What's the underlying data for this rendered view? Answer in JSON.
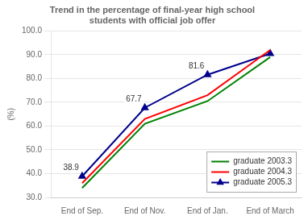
{
  "chart_data": {
    "type": "line",
    "title": "Trend in the percentage of final-year high school\nstudents with official job offer",
    "ylabel": "(%)",
    "categories": [
      "End of Sep.",
      "End of Nov.",
      "End of Jan.",
      "End of March"
    ],
    "series": [
      {
        "name": "graduate 2003.3",
        "color": "#008000",
        "values": [
          34.0,
          61.0,
          70.5,
          89.0
        ]
      },
      {
        "name": "graduate 2004.3",
        "color": "#ff0000",
        "values": [
          36.0,
          63.0,
          73.0,
          92.0
        ]
      },
      {
        "name": "graduate 2005.3",
        "color": "#00008b",
        "marker": "triangle",
        "values": [
          38.9,
          67.7,
          81.6,
          90.5
        ]
      }
    ],
    "annotations": [
      {
        "text": "38.9",
        "x": "End of Sep.",
        "y": 38.9
      },
      {
        "text": "67.7",
        "x": "End of Nov.",
        "y": 67.7
      },
      {
        "text": "81.6",
        "x": "End of Jan.",
        "y": 81.6
      }
    ],
    "ylim": [
      30.0,
      100.0
    ],
    "yticks": [
      {
        "value": 30.0,
        "label": "30.0"
      },
      {
        "value": 40.0,
        "label": "40.0"
      },
      {
        "value": 50.0,
        "label": "50.0"
      },
      {
        "value": 60.0,
        "label": "60.0"
      },
      {
        "value": 70.0,
        "label": "70.0"
      },
      {
        "value": 80.0,
        "label": "80.0"
      },
      {
        "value": 90.0,
        "label": "90.0"
      },
      {
        "value": 100.0,
        "label": "100.0"
      }
    ],
    "grid": true,
    "legend": "lower right"
  }
}
